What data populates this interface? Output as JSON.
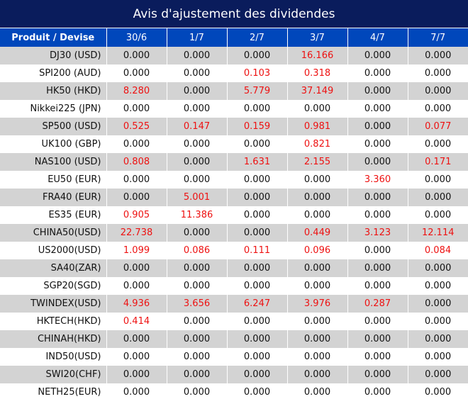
{
  "title": "Avis d'ajustement des dividendes",
  "table": {
    "headers": [
      "Produit / Devise",
      "30/6",
      "1/7",
      "2/7",
      "3/7",
      "4/7",
      "7/7"
    ],
    "rows": [
      {
        "product": "DJ30 (USD)",
        "values": [
          "0.000",
          "0.000",
          "0.000",
          "16.166",
          "0.000",
          "0.000"
        ]
      },
      {
        "product": "SPI200 (AUD)",
        "values": [
          "0.000",
          "0.000",
          "0.103",
          "0.318",
          "0.000",
          "0.000"
        ]
      },
      {
        "product": "HK50 (HKD)",
        "values": [
          "8.280",
          "0.000",
          "5.779",
          "37.149",
          "0.000",
          "0.000"
        ]
      },
      {
        "product": "Nikkei225 (JPN)",
        "values": [
          "0.000",
          "0.000",
          "0.000",
          "0.000",
          "0.000",
          "0.000"
        ]
      },
      {
        "product": "SP500 (USD)",
        "values": [
          "0.525",
          "0.147",
          "0.159",
          "0.981",
          "0.000",
          "0.077"
        ]
      },
      {
        "product": "UK100 (GBP)",
        "values": [
          "0.000",
          "0.000",
          "0.000",
          "0.821",
          "0.000",
          "0.000"
        ]
      },
      {
        "product": "NAS100 (USD)",
        "values": [
          "0.808",
          "0.000",
          "1.631",
          "2.155",
          "0.000",
          "0.171"
        ]
      },
      {
        "product": "EU50 (EUR)",
        "values": [
          "0.000",
          "0.000",
          "0.000",
          "0.000",
          "3.360",
          "0.000"
        ]
      },
      {
        "product": "FRA40 (EUR)",
        "values": [
          "0.000",
          "5.001",
          "0.000",
          "0.000",
          "0.000",
          "0.000"
        ]
      },
      {
        "product": "ES35 (EUR)",
        "values": [
          "0.905",
          "11.386",
          "0.000",
          "0.000",
          "0.000",
          "0.000"
        ]
      },
      {
        "product": "CHINA50(USD)",
        "values": [
          "22.738",
          "0.000",
          "0.000",
          "0.449",
          "3.123",
          "12.114"
        ]
      },
      {
        "product": "US2000(USD)",
        "values": [
          "1.099",
          "0.086",
          "0.111",
          "0.096",
          "0.000",
          "0.084"
        ]
      },
      {
        "product": "SA40(ZAR)",
        "values": [
          "0.000",
          "0.000",
          "0.000",
          "0.000",
          "0.000",
          "0.000"
        ]
      },
      {
        "product": "SGP20(SGD)",
        "values": [
          "0.000",
          "0.000",
          "0.000",
          "0.000",
          "0.000",
          "0.000"
        ]
      },
      {
        "product": "TWINDEX(USD)",
        "values": [
          "4.936",
          "3.656",
          "6.247",
          "3.976",
          "0.287",
          "0.000"
        ]
      },
      {
        "product": "HKTECH(HKD)",
        "values": [
          "0.414",
          "0.000",
          "0.000",
          "0.000",
          "0.000",
          "0.000"
        ]
      },
      {
        "product": "CHINAH(HKD)",
        "values": [
          "0.000",
          "0.000",
          "0.000",
          "0.000",
          "0.000",
          "0.000"
        ]
      },
      {
        "product": "IND50(USD)",
        "values": [
          "0.000",
          "0.000",
          "0.000",
          "0.000",
          "0.000",
          "0.000"
        ]
      },
      {
        "product": "SWI20(CHF)",
        "values": [
          "0.000",
          "0.000",
          "0.000",
          "0.000",
          "0.000",
          "0.000"
        ]
      },
      {
        "product": "NETH25(EUR)",
        "values": [
          "0.000",
          "0.000",
          "0.000",
          "0.000",
          "0.000",
          "0.000"
        ]
      }
    ]
  },
  "colors": {
    "title_bg": "#0a1c5c",
    "header_bg": "#0047bb",
    "row_alt_bg": "#d3d3d3",
    "nonzero_value": "#ee1111",
    "zero_value": "#111111"
  }
}
